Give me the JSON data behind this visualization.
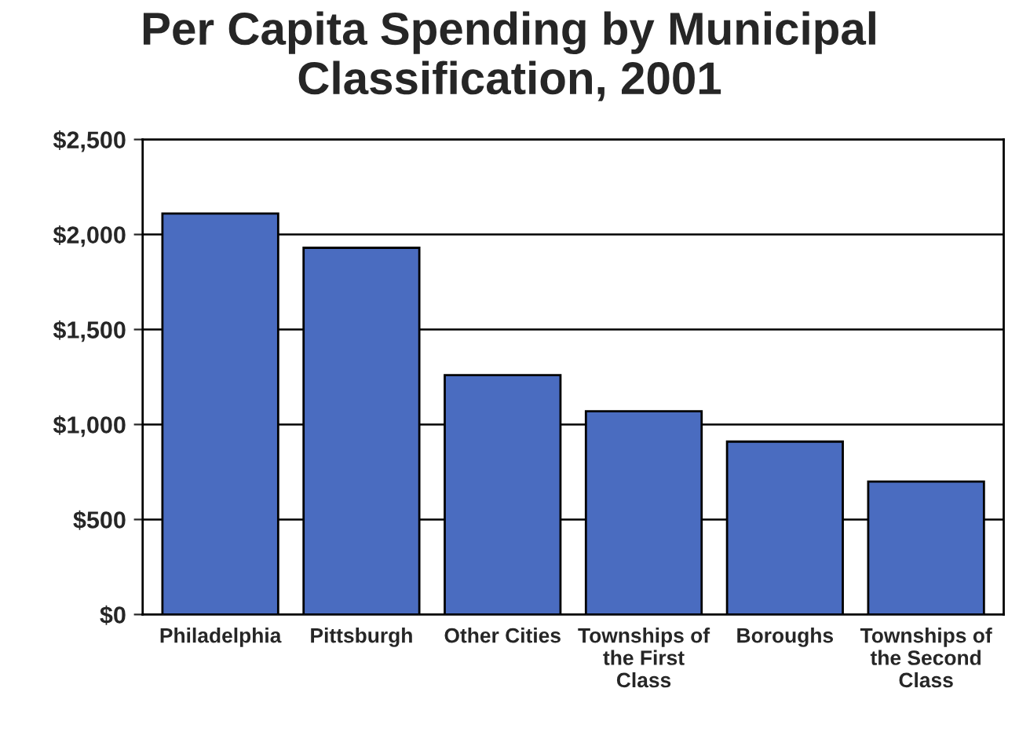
{
  "chart_data": {
    "type": "bar",
    "title": "Per Capita Spending by Municipal Classification, 2001",
    "categories": [
      "Philadelphia",
      "Pittsburgh",
      "Other Cities",
      "Townships of the First Class",
      "Boroughs",
      "Townships of the Second Class"
    ],
    "values": [
      2110,
      1930,
      1260,
      1070,
      910,
      700
    ],
    "color": "#4a6cc0",
    "ylim": [
      0,
      2500
    ],
    "yticks": [
      {
        "value": 0,
        "label": "$0"
      },
      {
        "value": 500,
        "label": "$500"
      },
      {
        "value": 1000,
        "label": "$1,000"
      },
      {
        "value": 1500,
        "label": "$1,500"
      },
      {
        "value": 2000,
        "label": "$2,000"
      },
      {
        "value": 2500,
        "label": "$2,500"
      }
    ],
    "grid": "y",
    "legend": false
  }
}
